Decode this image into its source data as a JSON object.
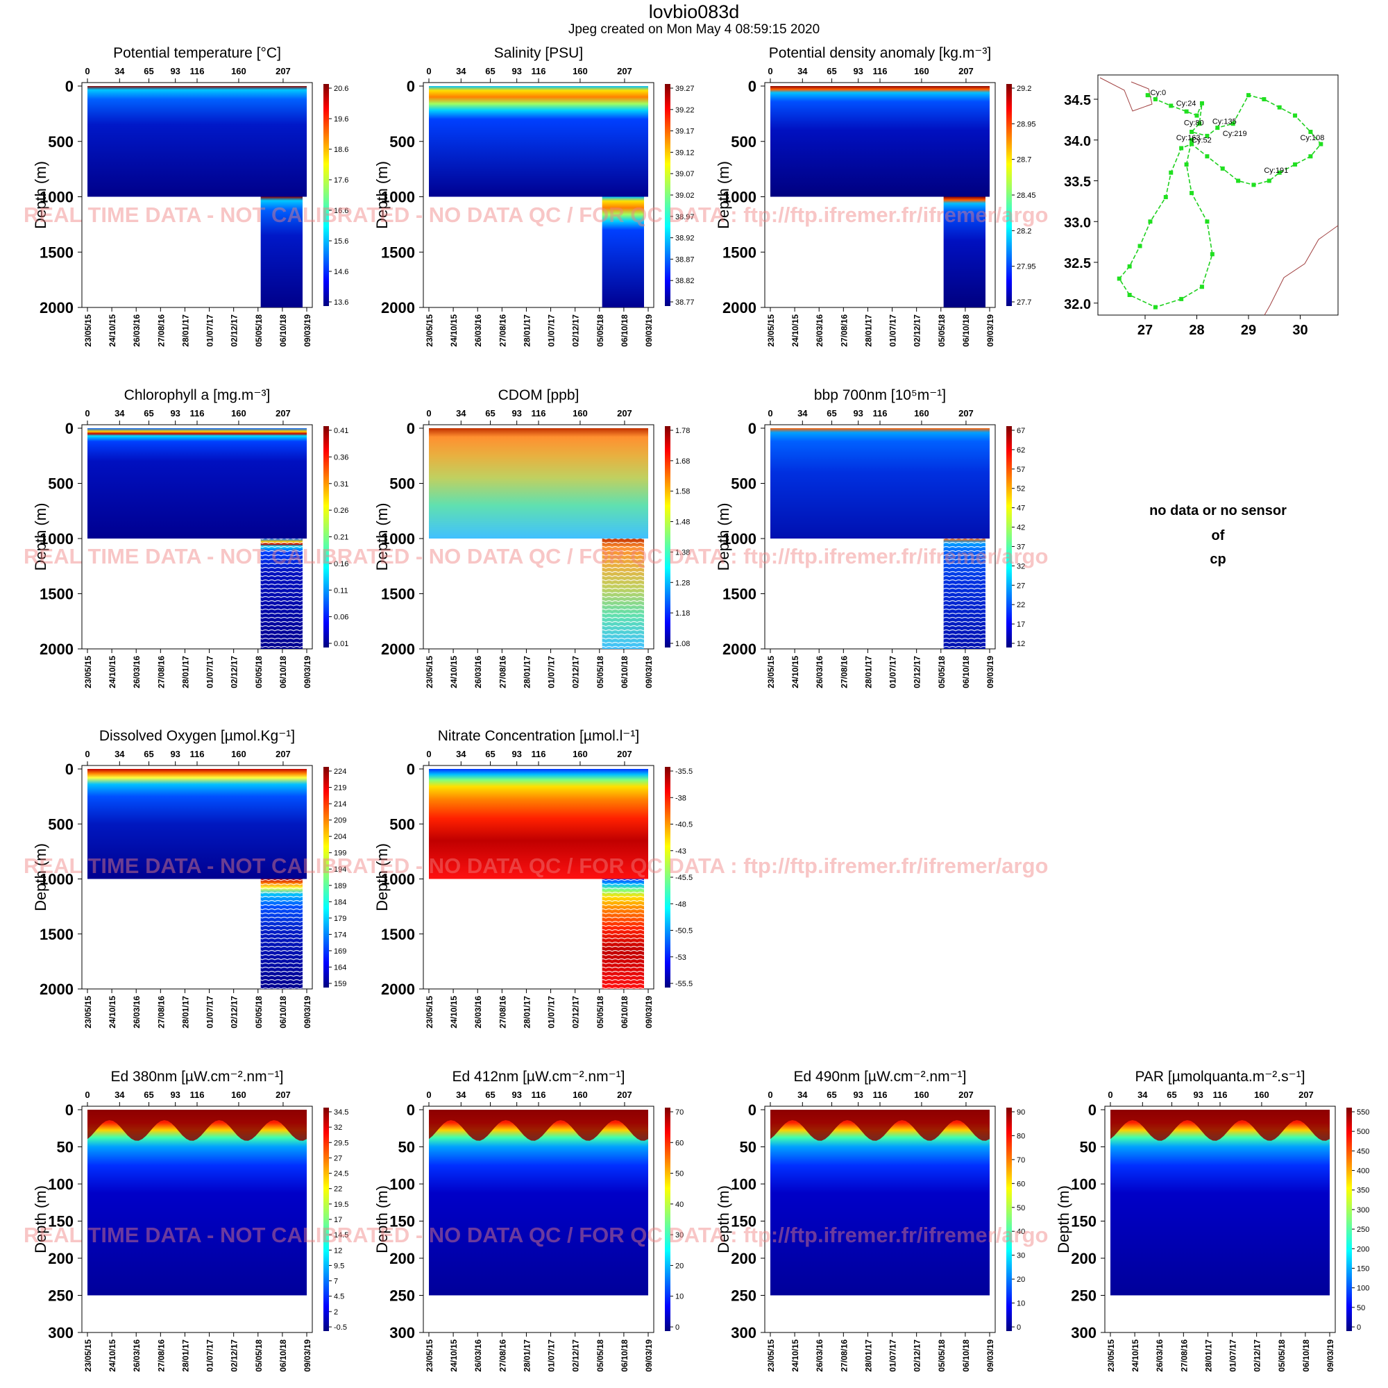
{
  "header": {
    "title": "lovbio083d",
    "subtitle": "Jpeg created on  Mon May  4 08:59:15 2020"
  },
  "watermark": "REAL TIME DATA - NOT CALIBRATED - NO DATA QC  /  FOR QC DATA : ftp://ftp.ifremer.fr/ifremer/argo",
  "nodata": {
    "lines": [
      "no data or no sensor",
      "of",
      "cp"
    ]
  },
  "axes": {
    "ylabel": "Depth (m)",
    "cycle_ticks": [
      "0",
      "34",
      "65",
      "93",
      "116",
      "160",
      "207"
    ],
    "date_ticks": [
      "23/05/15",
      "24/10/15",
      "26/03/16",
      "27/08/16",
      "28/01/17",
      "01/07/17",
      "02/12/17",
      "05/05/18",
      "06/10/18",
      "09/03/19"
    ],
    "depth_ticks_deep": [
      "0",
      "500",
      "1000",
      "1500",
      "2000"
    ],
    "depth_ticks_light": [
      "0",
      "50",
      "100",
      "150",
      "200",
      "250",
      "300"
    ]
  },
  "chart_data": [
    {
      "type": "heatmap",
      "title": "Potential temperature [°C]",
      "ylabel": "Depth (m)",
      "ylim": [
        2000,
        0
      ],
      "colorbar": [
        "20.6",
        "19.6",
        "18.6",
        "17.6",
        "16.6",
        "15.6",
        "14.6",
        "13.6"
      ],
      "profile": "temp"
    },
    {
      "type": "heatmap",
      "title": "Salinity [PSU]",
      "ylabel": "Depth (m)",
      "ylim": [
        2000,
        0
      ],
      "colorbar": [
        "39.27",
        "39.22",
        "39.17",
        "39.12",
        "39.07",
        "39.02",
        "38.97",
        "38.92",
        "38.87",
        "38.82",
        "38.77"
      ],
      "profile": "sal"
    },
    {
      "type": "heatmap",
      "title": "Potential density anomaly [kg.m⁻³]",
      "ylabel": "Depth (m)",
      "ylim": [
        2000,
        0
      ],
      "colorbar": [
        "29.2",
        "28.95",
        "28.7",
        "28.45",
        "28.2",
        "27.95",
        "27.7"
      ],
      "profile": "dens"
    },
    {
      "type": "scatter",
      "map": true,
      "yticks": [
        "34.5",
        "34.0",
        "33.5",
        "33.0",
        "32.5",
        "32.0"
      ],
      "xticks": [
        "27",
        "28",
        "29",
        "30"
      ],
      "labels": [
        "Cy:0",
        "Cy:24",
        "Cy:80",
        "Cy:135",
        "Cy:219",
        "Cy:108",
        "Cy:163",
        "Cy:52",
        "Cy:191"
      ]
    },
    {
      "type": "heatmap",
      "title": "Chlorophyll a [mg.m⁻³]",
      "ylabel": "Depth (m)",
      "ylim": [
        2000,
        0
      ],
      "colorbar": [
        "0.41",
        "0.36",
        "0.31",
        "0.26",
        "0.21",
        "0.16",
        "0.11",
        "0.06",
        "0.01"
      ],
      "profile": "chl"
    },
    {
      "type": "heatmap",
      "title": "CDOM  [ppb]",
      "ylabel": "Depth (m)",
      "ylim": [
        2000,
        0
      ],
      "colorbar": [
        "1.78",
        "1.68",
        "1.58",
        "1.48",
        "1.38",
        "1.28",
        "1.18",
        "1.08"
      ],
      "profile": "cdom"
    },
    {
      "type": "heatmap",
      "title": "bbp 700nm [10⁵m⁻¹]",
      "ylabel": "Depth (m)",
      "ylim": [
        2000,
        0
      ],
      "colorbar": [
        "67",
        "62",
        "57",
        "52",
        "47",
        "42",
        "37",
        "32",
        "27",
        "22",
        "17",
        "12"
      ],
      "profile": "bbp"
    },
    {
      "type": "heatmap",
      "title": "Dissolved Oxygen [µmol.Kg⁻¹]",
      "ylabel": "Depth (m)",
      "ylim": [
        2000,
        0
      ],
      "colorbar": [
        "224",
        "219",
        "214",
        "209",
        "204",
        "199",
        "194",
        "189",
        "184",
        "179",
        "174",
        "169",
        "164",
        "159"
      ],
      "profile": "oxy"
    },
    {
      "type": "heatmap",
      "title": "Nitrate Concentration [µmol.l⁻¹]",
      "ylabel": "Depth (m)",
      "ylim": [
        2000,
        0
      ],
      "colorbar": [
        "-35.5",
        "-38",
        "-40.5",
        "-43",
        "-45.5",
        "-48",
        "-50.5",
        "-53",
        "-55.5"
      ],
      "profile": "nit"
    },
    {
      "type": "heatmap",
      "title": "Ed 380nm [µW.cm⁻².nm⁻¹]",
      "ylabel": "Depth (m)",
      "ylim": [
        300,
        0
      ],
      "colorbar": [
        "34.5",
        "32",
        "29.5",
        "27",
        "24.5",
        "22",
        "19.5",
        "17",
        "14.5",
        "12",
        "9.5",
        "7",
        "4.5",
        "2",
        "-0.5"
      ],
      "profile": "light"
    },
    {
      "type": "heatmap",
      "title": "Ed 412nm [µW.cm⁻².nm⁻¹]",
      "ylabel": "Depth (m)",
      "ylim": [
        300,
        0
      ],
      "colorbar": [
        "70",
        "60",
        "50",
        "40",
        "30",
        "20",
        "10",
        "0"
      ],
      "profile": "light"
    },
    {
      "type": "heatmap",
      "title": "Ed 490nm [µW.cm⁻².nm⁻¹]",
      "ylabel": "Depth (m)",
      "ylim": [
        300,
        0
      ],
      "colorbar": [
        "90",
        "80",
        "70",
        "60",
        "50",
        "40",
        "30",
        "20",
        "10",
        "0"
      ],
      "profile": "light"
    },
    {
      "type": "heatmap",
      "title": "PAR [µmolquanta.m⁻².s⁻¹]",
      "ylabel": "Depth (m)",
      "ylim": [
        300,
        0
      ],
      "colorbar": [
        "550",
        "500",
        "450",
        "400",
        "350",
        "300",
        "250",
        "200",
        "150",
        "100",
        "50",
        "0"
      ],
      "profile": "light"
    }
  ]
}
